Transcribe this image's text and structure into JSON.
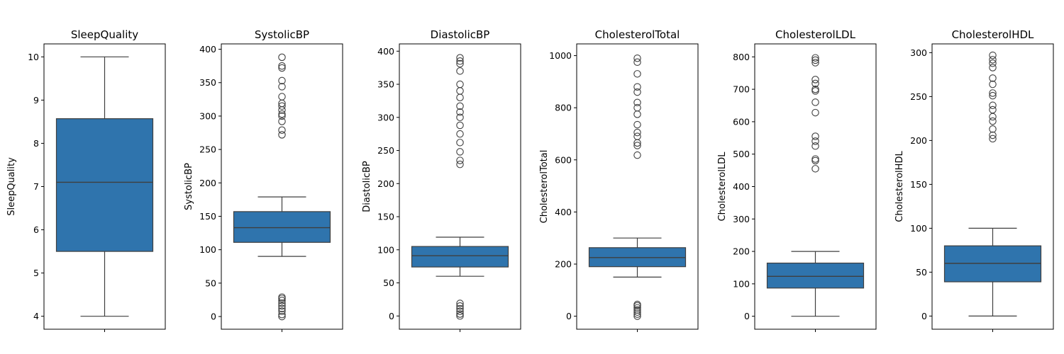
{
  "colors": {
    "box_fill": "#2f74ad",
    "line": "#3f3f3f",
    "frame": "#000000"
  },
  "chart_data": [
    {
      "type": "box",
      "title": "SleepQuality",
      "ylabel": "SleepQuality",
      "ylim": [
        3.7,
        10.3
      ],
      "yticks": [
        4,
        5,
        6,
        7,
        8,
        9,
        10
      ],
      "whisker_low": 4.0,
      "q1": 5.5,
      "median": 7.1,
      "q3": 8.57,
      "whisker_high": 10.0,
      "outliers": []
    },
    {
      "type": "box",
      "title": "SystolicBP",
      "ylabel": "SystolicBP",
      "ylim": [
        -19,
        408
      ],
      "yticks": [
        0,
        50,
        100,
        150,
        200,
        250,
        300,
        350,
        400
      ],
      "whisker_low": 90,
      "q1": 111,
      "median": 133,
      "q3": 157,
      "whisker_high": 179,
      "outliers": [
        0,
        3,
        8,
        12,
        16,
        20,
        24,
        27,
        29,
        272,
        279,
        292,
        300,
        303,
        309,
        315,
        319,
        329,
        344,
        353,
        372,
        375,
        388
      ]
    },
    {
      "type": "box",
      "title": "DiastolicBP",
      "ylabel": "DiastolicBP",
      "ylim": [
        -20,
        411
      ],
      "yticks": [
        0,
        50,
        100,
        150,
        200,
        250,
        300,
        350,
        400
      ],
      "whisker_low": 60,
      "q1": 74,
      "median": 91,
      "q3": 105,
      "whisker_high": 119,
      "outliers": [
        0,
        3,
        7,
        11,
        15,
        19,
        229,
        235,
        248,
        262,
        275,
        288,
        300,
        308,
        317,
        330,
        340,
        350,
        370,
        381,
        385,
        390
      ]
    },
    {
      "type": "box",
      "title": "CholesterolTotal",
      "ylabel": "CholesterolTotal",
      "ylim": [
        -50,
        1045
      ],
      "yticks": [
        0,
        200,
        400,
        600,
        800,
        1000
      ],
      "whisker_low": 150,
      "q1": 190,
      "median": 225,
      "q3": 263,
      "whisker_high": 300,
      "outliers": [
        0,
        8,
        16,
        24,
        32,
        40,
        45,
        618,
        655,
        665,
        690,
        705,
        735,
        775,
        800,
        820,
        860,
        880,
        930,
        975,
        990
      ]
    },
    {
      "type": "box",
      "title": "CholesterolLDL",
      "ylabel": "CholesterolLDL",
      "ylim": [
        -40,
        840
      ],
      "yticks": [
        0,
        100,
        200,
        300,
        400,
        500,
        600,
        700,
        800
      ],
      "whisker_low": 0,
      "q1": 87,
      "median": 123,
      "q3": 164,
      "whisker_high": 200,
      "outliers": [
        455,
        480,
        485,
        525,
        540,
        555,
        628,
        660,
        695,
        700,
        718,
        730,
        782,
        790,
        797
      ]
    },
    {
      "type": "box",
      "title": "CholesterolHDL",
      "ylabel": "CholesterolHDL",
      "ylim": [
        -15,
        310
      ],
      "yticks": [
        0,
        50,
        100,
        150,
        200,
        250,
        300
      ],
      "whisker_low": 0,
      "q1": 39,
      "median": 60,
      "q3": 80,
      "whisker_high": 100,
      "outliers": [
        202,
        206,
        213,
        222,
        227,
        235,
        240,
        251,
        254,
        264,
        271,
        283,
        288,
        292,
        297
      ]
    }
  ]
}
